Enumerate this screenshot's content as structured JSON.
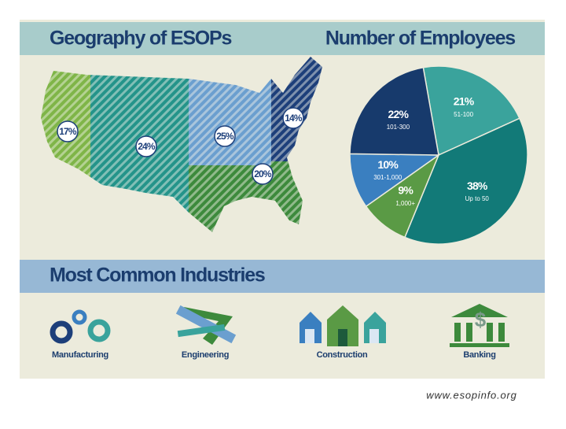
{
  "header": {
    "left_title": "Geography of ESOPs"
  },
  "map": {
    "regions": [
      {
        "value": 17,
        "label": "17%",
        "color": "#7fb548"
      },
      {
        "value": 24,
        "label": "24%",
        "color": "#24948a"
      },
      {
        "value": 25,
        "label": "25%",
        "color": "#6b9fcf"
      },
      {
        "value": 14,
        "label": "14%",
        "color": "#1d3f7a"
      },
      {
        "value": 20,
        "label": "20%",
        "color": "#3d8a3c"
      }
    ]
  },
  "chart_data": {
    "type": "pie",
    "title": "Number of Employees",
    "categories": [
      "51-100",
      "Up to 50",
      "1,000+",
      "301-1,000",
      "101-300"
    ],
    "values": [
      21,
      38,
      9,
      10,
      22
    ],
    "value_labels": [
      "21%",
      "38%",
      "9%",
      "10%",
      "22%"
    ],
    "colors": [
      "#3aa39c",
      "#127a78",
      "#5a9a45",
      "#3a7fc0",
      "#173a6c"
    ]
  },
  "industries": {
    "title": "Most Common Industries",
    "items": [
      "Manufacturing",
      "Engineering",
      "Construction",
      "Banking"
    ],
    "banking_symbol": "$"
  },
  "footer": "www.esopinfo.org"
}
